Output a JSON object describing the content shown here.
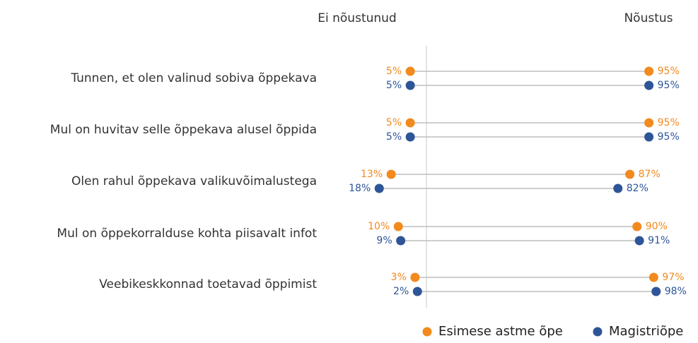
{
  "chart_data": {
    "type": "dumbbell",
    "left_header": "Ei nõustunud",
    "right_header": "Nõustus",
    "categories": [
      "Tunnen, et olen valinud sobiva õppekava",
      "Mul on huvitav selle õppekava alusel õppida",
      "Olen rahul õppekava valikuvõimalustega",
      "Mul on õppekorralduse kohta piisavalt infot",
      "Veebikeskkonnad toetavad õppimist"
    ],
    "series": [
      {
        "name": "Esimese astme õpe",
        "color": "#f28a1e",
        "disagree": [
          5,
          5,
          13,
          10,
          3
        ],
        "disagree_labels": [
          "5%",
          "5%",
          "13%",
          "10%",
          "3%"
        ],
        "agree": [
          95,
          95,
          87,
          90,
          97
        ],
        "agree_labels": [
          "95%",
          "95%",
          "87%",
          "90%",
          "97%"
        ]
      },
      {
        "name": "Magistriõpe",
        "color": "#2e5597",
        "disagree": [
          5,
          5,
          18,
          9,
          2
        ],
        "disagree_labels": [
          "5%",
          "5%",
          "18%",
          "9%",
          "2%"
        ],
        "agree": [
          95,
          95,
          82,
          91,
          98
        ],
        "agree_labels": [
          "95%",
          "95%",
          "82%",
          "91%",
          "98%"
        ]
      }
    ]
  }
}
